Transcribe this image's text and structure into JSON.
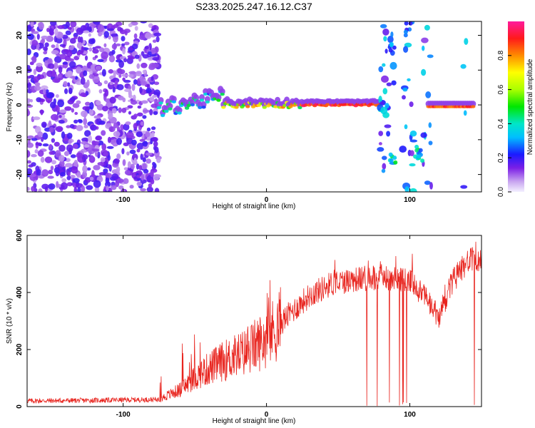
{
  "title": "S233.2025.247.16.12.C37",
  "colors": {
    "snr_line": "#e8241e",
    "axis": "#000000",
    "background": "#ffffff"
  },
  "chart_data": [
    {
      "type": "heatmap",
      "name": "spectrogram",
      "xlabel": "Height of straight line (km)",
      "ylabel": "Frequency (Hz)",
      "xlim": [
        -167,
        150
      ],
      "ylim": [
        -25,
        24
      ],
      "xticks": [
        -100,
        0,
        100
      ],
      "yticks": [
        -20,
        -10,
        0,
        10,
        20
      ],
      "colorbar": {
        "label": "Normalized spectral amplitude",
        "range": [
          0,
          1
        ],
        "ticks": [
          0.0,
          0.2,
          0.4,
          0.6,
          0.8
        ]
      },
      "regions": [
        {
          "label": "broadband noise",
          "x_range": [
            -167,
            -75
          ],
          "y_range": [
            -25,
            24
          ],
          "amplitude": 0.15
        },
        {
          "label": "carrier track rising",
          "x_range": [
            -75,
            -30
          ],
          "y_center": 0.5,
          "amplitude": 0.35
        },
        {
          "label": "carrier track",
          "x_range": [
            -30,
            80
          ],
          "y_center": 0.0,
          "amplitude": 0.85
        },
        {
          "label": "gap burst",
          "x_range": [
            77,
            140
          ],
          "y_range": [
            -25,
            24
          ],
          "amplitude": 0.3
        },
        {
          "label": "carrier track resumed",
          "x_range": [
            113,
            145
          ],
          "y_center": -0.5,
          "amplitude": 0.9
        }
      ]
    },
    {
      "type": "line",
      "name": "snr",
      "xlabel": "Height of straight line (km)",
      "ylabel": "SNR (10 * v/v)",
      "xlim": [
        -167,
        150
      ],
      "ylim": [
        0,
        600
      ],
      "xticks": [
        -100,
        0,
        100
      ],
      "yticks": [
        0,
        200,
        400,
        600
      ],
      "series": [
        {
          "name": "SNR",
          "trend_points": [
            {
              "x": -167,
              "y": 20
            },
            {
              "x": -120,
              "y": 22
            },
            {
              "x": -75,
              "y": 25
            },
            {
              "x": -60,
              "y": 60
            },
            {
              "x": -45,
              "y": 120
            },
            {
              "x": -30,
              "y": 160
            },
            {
              "x": -15,
              "y": 190
            },
            {
              "x": 0,
              "y": 240
            },
            {
              "x": 15,
              "y": 320
            },
            {
              "x": 30,
              "y": 390
            },
            {
              "x": 45,
              "y": 430
            },
            {
              "x": 60,
              "y": 445
            },
            {
              "x": 80,
              "y": 455
            },
            {
              "x": 100,
              "y": 440
            },
            {
              "x": 110,
              "y": 390
            },
            {
              "x": 120,
              "y": 310
            },
            {
              "x": 130,
              "y": 440
            },
            {
              "x": 140,
              "y": 510
            },
            {
              "x": 150,
              "y": 520
            }
          ],
          "peak_max": 600,
          "dropouts_to_zero_x_range": [
            67,
            145
          ]
        }
      ]
    }
  ]
}
